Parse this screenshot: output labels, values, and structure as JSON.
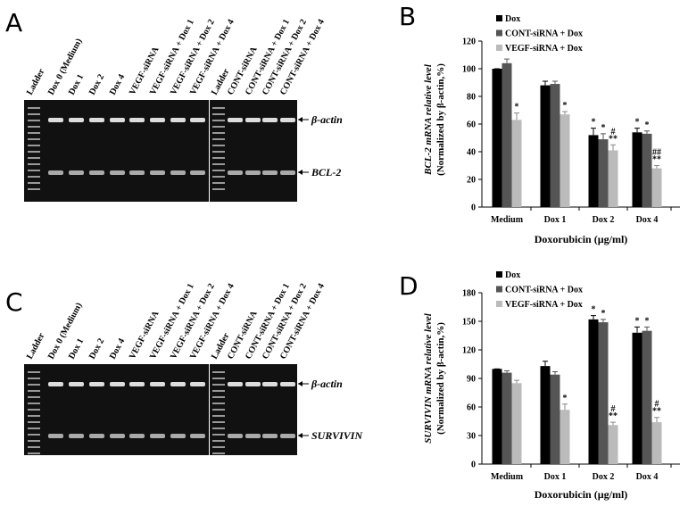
{
  "panels": [
    "A",
    "B",
    "C",
    "D"
  ],
  "gels": [
    {
      "lanes": [
        "Ladder",
        "Dox 0 (Medium)",
        "Dox 1",
        "Dox 2",
        "Dox 4",
        "VEGF-siRNA",
        "VEGF-siRNA + Dox 1",
        "VEGF-siRNA + Dox 2",
        "VEGF-siRNA + Dox 4",
        "Ladder",
        "CONT-siRNA",
        "CONT-siRNA + Dox 1",
        "CONT-siRNA + Dox 2",
        "CONT-siRNA + Dox 4"
      ],
      "bands": [
        "β-actin",
        "BCL-2"
      ]
    },
    {
      "lanes": [
        "Ladder",
        "Dox 0 (Medium)",
        "Dox 1",
        "Dox 2",
        "Dox 4",
        "VEGF-siRNA",
        "VEGF-siRNA + Dox 1",
        "VEGF-siRNA + Dox 2",
        "VEGF-siRNA + Dox 4",
        "Ladder",
        "CONT-siRNA",
        "CONT-siRNA + Dox 1",
        "CONT-siRNA + Dox 2",
        "CONT-siRNA + Dox 4"
      ],
      "bands": [
        "β-actin",
        "SURVIVIN"
      ]
    }
  ],
  "chart_data": [
    {
      "type": "bar",
      "ylabel": "BCL-2 mRNA relative level",
      "ylabel2": "(Normalized by β-actin,%)",
      "xlabel": "Doxorubicin (µg/ml)",
      "categories": [
        "Medium",
        "Dox 1",
        "Dox 2",
        "Dox 4"
      ],
      "series": [
        {
          "name": "Dox",
          "color": "#000000",
          "values": [
            100,
            88,
            52,
            54
          ],
          "errors": [
            0,
            3,
            5,
            3
          ],
          "marks": [
            null,
            null,
            [
              "*"
            ],
            [
              "*"
            ]
          ]
        },
        {
          "name": "CONT-siRNA + Dox",
          "color": "#555555",
          "values": [
            104,
            89,
            49,
            53
          ],
          "errors": [
            3,
            2,
            4,
            2
          ],
          "marks": [
            null,
            null,
            [
              "*"
            ],
            [
              "*"
            ]
          ]
        },
        {
          "name": "VEGF-siRNA + Dox",
          "color": "#bbbbbb",
          "values": [
            63,
            67,
            41,
            28
          ],
          "errors": [
            5,
            2,
            4,
            2
          ],
          "marks": [
            [
              "*"
            ],
            [
              "*"
            ],
            [
              "#",
              "**"
            ],
            [
              "##",
              "**"
            ]
          ]
        }
      ],
      "ylim": [
        0,
        120
      ],
      "yticks": [
        0,
        20,
        40,
        60,
        80,
        100,
        120
      ]
    },
    {
      "type": "bar",
      "ylabel": "SURVIVIN mRNA relative level",
      "ylabel2": "(Normalized by β-actin,%)",
      "xlabel": "Doxorubicin (µg/ml)",
      "categories": [
        "Medium",
        "Dox 1",
        "Dox 2",
        "Dox 4"
      ],
      "series": [
        {
          "name": "Dox",
          "color": "#000000",
          "values": [
            100,
            103,
            152,
            138
          ],
          "errors": [
            0,
            5,
            4,
            6
          ],
          "marks": [
            null,
            null,
            [
              "*"
            ],
            [
              "*"
            ]
          ]
        },
        {
          "name": "CONT-siRNA + Dox",
          "color": "#555555",
          "values": [
            96,
            94,
            149,
            140
          ],
          "errors": [
            2,
            3,
            3,
            4
          ],
          "marks": [
            null,
            null,
            [
              "*"
            ],
            [
              "*"
            ]
          ]
        },
        {
          "name": "VEGF-siRNA + Dox",
          "color": "#bbbbbb",
          "values": [
            85,
            57,
            41,
            44
          ],
          "errors": [
            3,
            6,
            3,
            5
          ],
          "marks": [
            null,
            [
              "*"
            ],
            [
              "#",
              "**"
            ],
            [
              "#",
              "**"
            ]
          ]
        }
      ],
      "ylim": [
        0,
        180
      ],
      "yticks": [
        0,
        30,
        60,
        90,
        120,
        150,
        180
      ]
    }
  ]
}
